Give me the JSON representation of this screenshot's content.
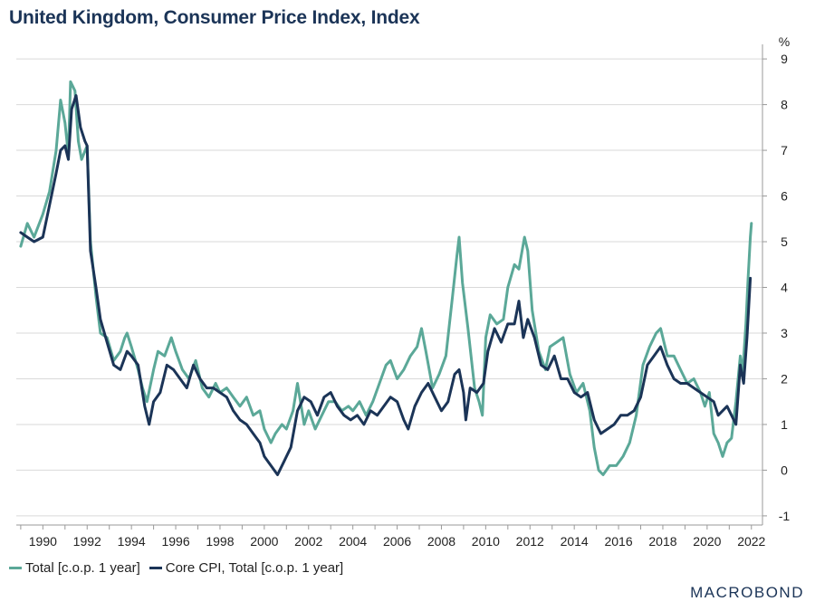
{
  "title": "United Kingdom, Consumer Price Index, Index",
  "brand": {
    "text": "MACROBOND"
  },
  "colors": {
    "total": "#5ba898",
    "core": "#1b3457",
    "grid": "#d9d9d9",
    "axis": "#999999",
    "text": "#222222"
  },
  "chart_data": {
    "type": "line",
    "unit_label": "%",
    "xlim": [
      1988.8,
      2022.5
    ],
    "ylim": [
      -1.2,
      9.2
    ],
    "x_ticks": [
      1990,
      1992,
      1994,
      1996,
      1998,
      2000,
      2002,
      2004,
      2006,
      2008,
      2010,
      2012,
      2014,
      2016,
      2018,
      2020,
      2022
    ],
    "y_ticks": [
      -1,
      0,
      1,
      2,
      3,
      4,
      5,
      6,
      7,
      8,
      9
    ],
    "grid": "horizontal",
    "legend_position": "bottom-left",
    "series": [
      {
        "name": "Total [c.o.p. 1 year]",
        "color": "#5ba898",
        "points": [
          [
            1989.0,
            4.9
          ],
          [
            1989.3,
            5.4
          ],
          [
            1989.6,
            5.1
          ],
          [
            1990.0,
            5.6
          ],
          [
            1990.3,
            6.1
          ],
          [
            1990.6,
            7.0
          ],
          [
            1990.8,
            8.1
          ],
          [
            1991.0,
            7.6
          ],
          [
            1991.15,
            6.9
          ],
          [
            1991.25,
            8.5
          ],
          [
            1991.45,
            8.3
          ],
          [
            1991.6,
            7.2
          ],
          [
            1991.75,
            6.8
          ],
          [
            1992.0,
            7.1
          ],
          [
            1992.15,
            5.0
          ],
          [
            1992.4,
            3.8
          ],
          [
            1992.6,
            3.0
          ],
          [
            1992.9,
            2.9
          ],
          [
            1993.2,
            2.4
          ],
          [
            1993.5,
            2.6
          ],
          [
            1993.7,
            2.9
          ],
          [
            1993.8,
            3.0
          ],
          [
            1994.0,
            2.7
          ],
          [
            1994.3,
            2.2
          ],
          [
            1994.5,
            1.8
          ],
          [
            1994.7,
            1.5
          ],
          [
            1995.0,
            2.2
          ],
          [
            1995.2,
            2.6
          ],
          [
            1995.5,
            2.5
          ],
          [
            1995.8,
            2.9
          ],
          [
            1996.0,
            2.6
          ],
          [
            1996.3,
            2.2
          ],
          [
            1996.6,
            2.0
          ],
          [
            1996.9,
            2.4
          ],
          [
            1997.2,
            1.8
          ],
          [
            1997.5,
            1.6
          ],
          [
            1997.8,
            1.9
          ],
          [
            1998.0,
            1.7
          ],
          [
            1998.3,
            1.8
          ],
          [
            1998.6,
            1.6
          ],
          [
            1998.9,
            1.4
          ],
          [
            1999.2,
            1.6
          ],
          [
            1999.5,
            1.2
          ],
          [
            1999.8,
            1.3
          ],
          [
            2000.0,
            0.9
          ],
          [
            2000.3,
            0.6
          ],
          [
            2000.5,
            0.8
          ],
          [
            2000.8,
            1.0
          ],
          [
            2001.0,
            0.9
          ],
          [
            2001.3,
            1.3
          ],
          [
            2001.5,
            1.9
          ],
          [
            2001.8,
            1.0
          ],
          [
            2002.0,
            1.3
          ],
          [
            2002.3,
            0.9
          ],
          [
            2002.6,
            1.2
          ],
          [
            2002.9,
            1.5
          ],
          [
            2003.2,
            1.5
          ],
          [
            2003.5,
            1.3
          ],
          [
            2003.8,
            1.4
          ],
          [
            2004.0,
            1.3
          ],
          [
            2004.3,
            1.5
          ],
          [
            2004.6,
            1.2
          ],
          [
            2004.9,
            1.5
          ],
          [
            2005.2,
            1.9
          ],
          [
            2005.5,
            2.3
          ],
          [
            2005.7,
            2.4
          ],
          [
            2006.0,
            2.0
          ],
          [
            2006.3,
            2.2
          ],
          [
            2006.6,
            2.5
          ],
          [
            2006.9,
            2.7
          ],
          [
            2007.1,
            3.1
          ],
          [
            2007.3,
            2.6
          ],
          [
            2007.6,
            1.8
          ],
          [
            2007.9,
            2.1
          ],
          [
            2008.2,
            2.5
          ],
          [
            2008.5,
            3.8
          ],
          [
            2008.7,
            4.7
          ],
          [
            2008.8,
            5.1
          ],
          [
            2008.95,
            4.1
          ],
          [
            2009.2,
            3.1
          ],
          [
            2009.5,
            1.8
          ],
          [
            2009.7,
            1.5
          ],
          [
            2009.85,
            1.2
          ],
          [
            2010.0,
            2.9
          ],
          [
            2010.2,
            3.4
          ],
          [
            2010.5,
            3.2
          ],
          [
            2010.8,
            3.3
          ],
          [
            2011.0,
            4.0
          ],
          [
            2011.3,
            4.5
          ],
          [
            2011.5,
            4.4
          ],
          [
            2011.75,
            5.1
          ],
          [
            2011.9,
            4.8
          ],
          [
            2012.1,
            3.5
          ],
          [
            2012.4,
            2.6
          ],
          [
            2012.7,
            2.2
          ],
          [
            2012.9,
            2.7
          ],
          [
            2013.2,
            2.8
          ],
          [
            2013.5,
            2.9
          ],
          [
            2013.8,
            2.1
          ],
          [
            2014.1,
            1.7
          ],
          [
            2014.4,
            1.9
          ],
          [
            2014.7,
            1.3
          ],
          [
            2014.9,
            0.5
          ],
          [
            2015.1,
            0.0
          ],
          [
            2015.3,
            -0.1
          ],
          [
            2015.6,
            0.1
          ],
          [
            2015.9,
            0.1
          ],
          [
            2016.2,
            0.3
          ],
          [
            2016.5,
            0.6
          ],
          [
            2016.8,
            1.2
          ],
          [
            2017.1,
            2.3
          ],
          [
            2017.4,
            2.7
          ],
          [
            2017.7,
            3.0
          ],
          [
            2017.9,
            3.1
          ],
          [
            2018.2,
            2.5
          ],
          [
            2018.5,
            2.5
          ],
          [
            2018.8,
            2.2
          ],
          [
            2019.1,
            1.9
          ],
          [
            2019.4,
            2.0
          ],
          [
            2019.7,
            1.7
          ],
          [
            2019.9,
            1.4
          ],
          [
            2020.1,
            1.7
          ],
          [
            2020.3,
            0.8
          ],
          [
            2020.5,
            0.6
          ],
          [
            2020.7,
            0.3
          ],
          [
            2020.9,
            0.6
          ],
          [
            2021.1,
            0.7
          ],
          [
            2021.3,
            1.5
          ],
          [
            2021.5,
            2.5
          ],
          [
            2021.6,
            2.1
          ],
          [
            2021.75,
            3.2
          ],
          [
            2021.85,
            4.2
          ],
          [
            2021.95,
            5.1
          ],
          [
            2022.0,
            5.4
          ]
        ]
      },
      {
        "name": "Core CPI, Total [c.o.p. 1 year]",
        "color": "#1b3457",
        "points": [
          [
            1989.0,
            5.2
          ],
          [
            1989.3,
            5.1
          ],
          [
            1989.6,
            5.0
          ],
          [
            1990.0,
            5.1
          ],
          [
            1990.3,
            5.8
          ],
          [
            1990.6,
            6.5
          ],
          [
            1990.8,
            7.0
          ],
          [
            1991.0,
            7.1
          ],
          [
            1991.15,
            6.8
          ],
          [
            1991.3,
            7.9
          ],
          [
            1991.5,
            8.2
          ],
          [
            1991.7,
            7.5
          ],
          [
            1991.9,
            7.2
          ],
          [
            1992.0,
            7.1
          ],
          [
            1992.15,
            4.8
          ],
          [
            1992.4,
            4.0
          ],
          [
            1992.6,
            3.3
          ],
          [
            1992.9,
            2.8
          ],
          [
            1993.2,
            2.3
          ],
          [
            1993.5,
            2.2
          ],
          [
            1993.8,
            2.6
          ],
          [
            1994.0,
            2.5
          ],
          [
            1994.3,
            2.3
          ],
          [
            1994.6,
            1.4
          ],
          [
            1994.8,
            1.0
          ],
          [
            1995.0,
            1.5
          ],
          [
            1995.3,
            1.7
          ],
          [
            1995.6,
            2.3
          ],
          [
            1995.9,
            2.2
          ],
          [
            1996.2,
            2.0
          ],
          [
            1996.5,
            1.8
          ],
          [
            1996.8,
            2.3
          ],
          [
            1997.1,
            2.0
          ],
          [
            1997.4,
            1.8
          ],
          [
            1997.7,
            1.8
          ],
          [
            1998.0,
            1.7
          ],
          [
            1998.3,
            1.6
          ],
          [
            1998.6,
            1.3
          ],
          [
            1998.9,
            1.1
          ],
          [
            1999.2,
            1.0
          ],
          [
            1999.5,
            0.8
          ],
          [
            1999.8,
            0.6
          ],
          [
            2000.0,
            0.3
          ],
          [
            2000.3,
            0.1
          ],
          [
            2000.6,
            -0.1
          ],
          [
            2000.9,
            0.2
          ],
          [
            2001.2,
            0.5
          ],
          [
            2001.5,
            1.3
          ],
          [
            2001.8,
            1.6
          ],
          [
            2002.1,
            1.5
          ],
          [
            2002.4,
            1.2
          ],
          [
            2002.7,
            1.6
          ],
          [
            2003.0,
            1.7
          ],
          [
            2003.3,
            1.4
          ],
          [
            2003.6,
            1.2
          ],
          [
            2003.9,
            1.1
          ],
          [
            2004.2,
            1.2
          ],
          [
            2004.5,
            1.0
          ],
          [
            2004.8,
            1.3
          ],
          [
            2005.1,
            1.2
          ],
          [
            2005.4,
            1.4
          ],
          [
            2005.7,
            1.6
          ],
          [
            2006.0,
            1.5
          ],
          [
            2006.3,
            1.1
          ],
          [
            2006.5,
            0.9
          ],
          [
            2006.8,
            1.4
          ],
          [
            2007.1,
            1.7
          ],
          [
            2007.4,
            1.9
          ],
          [
            2007.7,
            1.6
          ],
          [
            2008.0,
            1.3
          ],
          [
            2008.3,
            1.5
          ],
          [
            2008.6,
            2.1
          ],
          [
            2008.8,
            2.2
          ],
          [
            2009.0,
            1.7
          ],
          [
            2009.1,
            1.1
          ],
          [
            2009.3,
            1.8
          ],
          [
            2009.6,
            1.7
          ],
          [
            2009.9,
            1.9
          ],
          [
            2010.1,
            2.6
          ],
          [
            2010.4,
            3.1
          ],
          [
            2010.7,
            2.8
          ],
          [
            2011.0,
            3.2
          ],
          [
            2011.3,
            3.2
          ],
          [
            2011.5,
            3.7
          ],
          [
            2011.7,
            2.9
          ],
          [
            2011.9,
            3.3
          ],
          [
            2012.2,
            2.9
          ],
          [
            2012.5,
            2.3
          ],
          [
            2012.8,
            2.2
          ],
          [
            2013.1,
            2.5
          ],
          [
            2013.4,
            2.0
          ],
          [
            2013.7,
            2.0
          ],
          [
            2014.0,
            1.7
          ],
          [
            2014.3,
            1.6
          ],
          [
            2014.6,
            1.7
          ],
          [
            2014.9,
            1.1
          ],
          [
            2015.2,
            0.8
          ],
          [
            2015.5,
            0.9
          ],
          [
            2015.8,
            1.0
          ],
          [
            2016.1,
            1.2
          ],
          [
            2016.4,
            1.2
          ],
          [
            2016.7,
            1.3
          ],
          [
            2017.0,
            1.6
          ],
          [
            2017.3,
            2.3
          ],
          [
            2017.6,
            2.5
          ],
          [
            2017.9,
            2.7
          ],
          [
            2018.2,
            2.3
          ],
          [
            2018.5,
            2.0
          ],
          [
            2018.8,
            1.9
          ],
          [
            2019.1,
            1.9
          ],
          [
            2019.4,
            1.8
          ],
          [
            2019.7,
            1.7
          ],
          [
            2020.0,
            1.6
          ],
          [
            2020.3,
            1.5
          ],
          [
            2020.5,
            1.2
          ],
          [
            2020.7,
            1.3
          ],
          [
            2020.9,
            1.4
          ],
          [
            2021.1,
            1.2
          ],
          [
            2021.3,
            1.0
          ],
          [
            2021.5,
            2.3
          ],
          [
            2021.65,
            1.9
          ],
          [
            2021.8,
            2.9
          ],
          [
            2021.95,
            4.2
          ]
        ]
      }
    ]
  }
}
